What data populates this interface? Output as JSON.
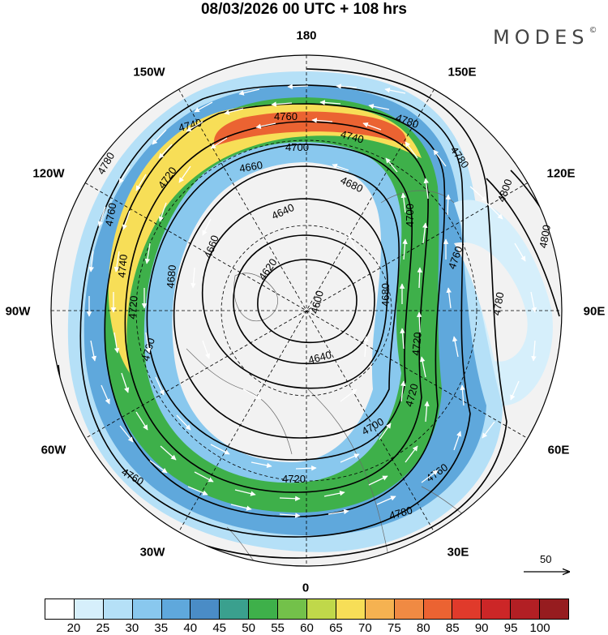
{
  "title": "08/03/2026  00 UTC  + 108 hrs",
  "brand": {
    "name": "MODES",
    "mark": "©"
  },
  "map": {
    "projection": "north-polar-stereographic",
    "longitude_labels": [
      {
        "text": "180",
        "lon": 180
      },
      {
        "text": "150E",
        "lon": 150
      },
      {
        "text": "120E",
        "lon": 120
      },
      {
        "text": "90E",
        "lon": 90
      },
      {
        "text": "60E",
        "lon": 60
      },
      {
        "text": "30E",
        "lon": 30
      },
      {
        "text": "0",
        "lon": 0
      },
      {
        "text": "30W",
        "lon": -30
      },
      {
        "text": "60W",
        "lon": -60
      },
      {
        "text": "90W",
        "lon": -90
      },
      {
        "text": "120W",
        "lon": -120
      },
      {
        "text": "150W",
        "lon": -150
      }
    ],
    "contour_labels": [
      "4600",
      "4620",
      "4640",
      "4660",
      "4680",
      "4700",
      "4720",
      "4740",
      "4760",
      "4780",
      "4800"
    ],
    "vector_key": {
      "value": "50"
    }
  },
  "colorbar": {
    "colors": [
      "#ffffff",
      "#d6effb",
      "#b5e0f7",
      "#89c8ee",
      "#5fa8dc",
      "#4a8cc6",
      "#3aa08e",
      "#3eb04a",
      "#73c14a",
      "#c0d84a",
      "#f7de57",
      "#f5b251",
      "#f08a43",
      "#eb6332",
      "#e03a2b",
      "#cc2627",
      "#b21f24",
      "#961c1f"
    ],
    "labels": [
      "20",
      "25",
      "30",
      "35",
      "40",
      "45",
      "50",
      "55",
      "60",
      "65",
      "70",
      "75",
      "80",
      "85",
      "90",
      "95",
      "100"
    ]
  }
}
